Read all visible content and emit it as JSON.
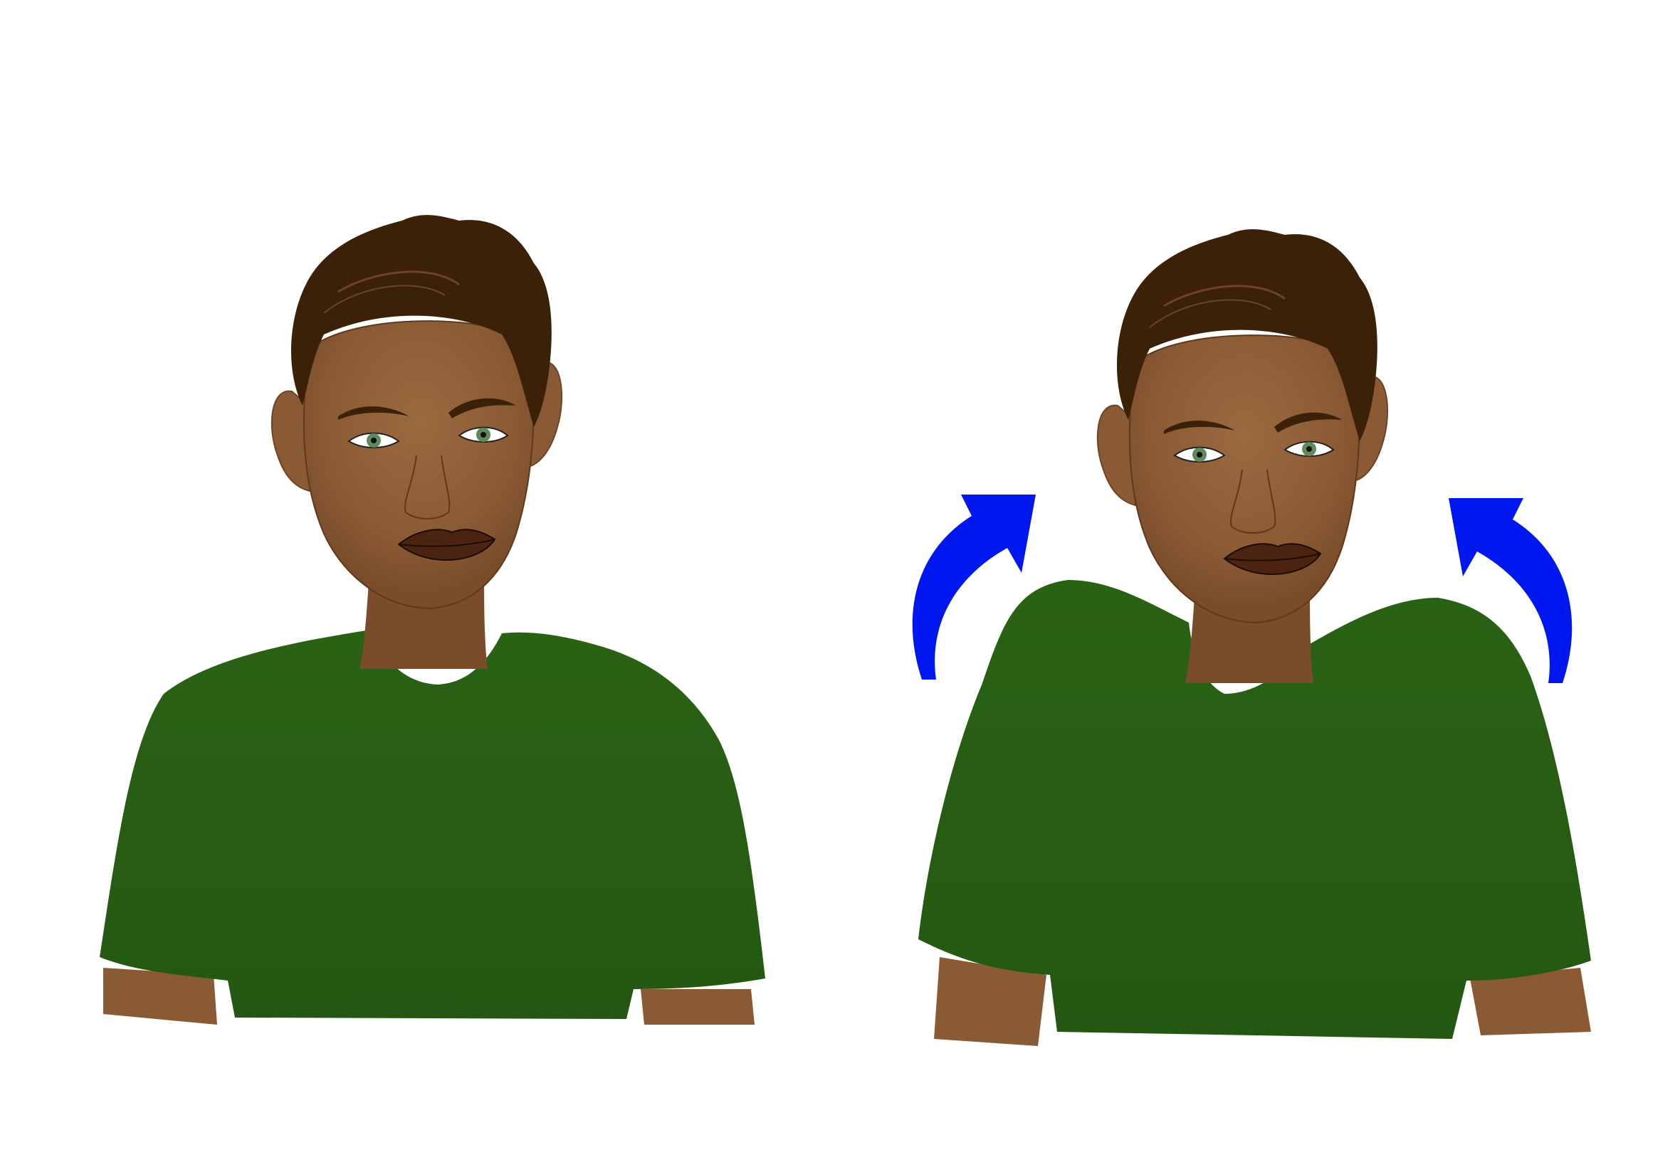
{
  "illustration": {
    "panels": [
      {
        "state": "shoulders-relaxed"
      },
      {
        "state": "shoulders-raised",
        "arrows": [
          "arrow-up-left",
          "arrow-up-right"
        ]
      }
    ],
    "colors": {
      "background": "#ffffff",
      "skin": "#8a5a34",
      "skin_highlight": "#9b6a40",
      "skin_shadow": "#6e4424",
      "hair": "#3b2108",
      "shirt": "#275c12",
      "shirt_dark": "#1f4e0e",
      "lips": "#4a2410",
      "eye_iris": "#5f8a5a",
      "arrow": "#0018f0"
    }
  }
}
